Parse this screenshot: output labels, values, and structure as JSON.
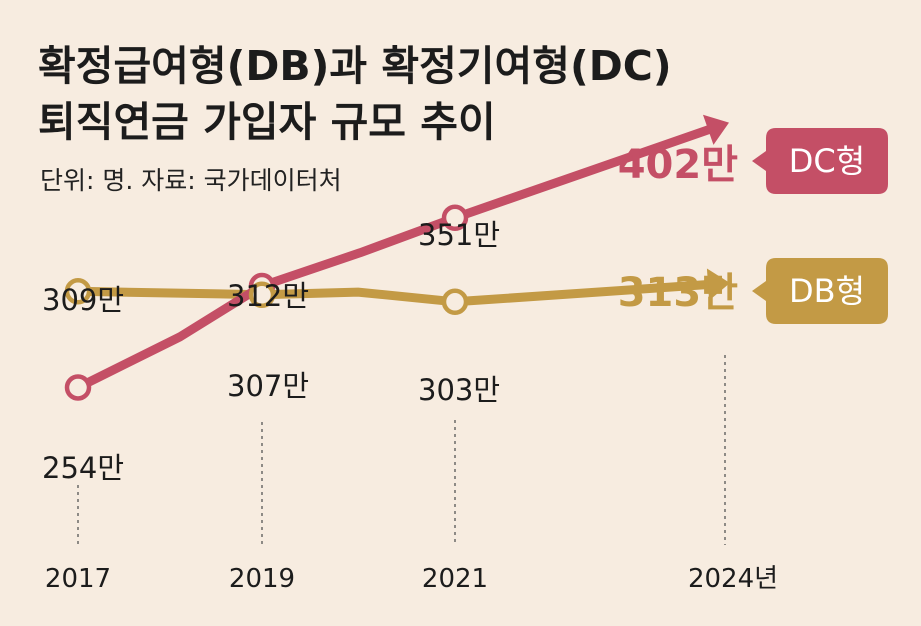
{
  "title_line1": "확정급여형(DB)과 확정기여형(DC)",
  "title_line2": "퇴직연금 가입자 규모 추이",
  "subtitle": "단위: 명. 자료: 국가데이터처",
  "chart_data": {
    "type": "line",
    "unit": "만",
    "x": [
      "2017",
      "2019",
      "2021",
      "2024년"
    ],
    "series": [
      {
        "name": "DC형",
        "color": "#c44f66",
        "values": [
          254,
          312,
          351,
          402
        ],
        "value_labels": [
          "254만",
          "312만",
          "351만",
          "402만"
        ]
      },
      {
        "name": "DB형",
        "color": "#c39a45",
        "values": [
          309,
          307,
          303,
          313
        ],
        "value_labels": [
          "309만",
          "307만",
          "303만",
          "313만"
        ]
      }
    ]
  }
}
